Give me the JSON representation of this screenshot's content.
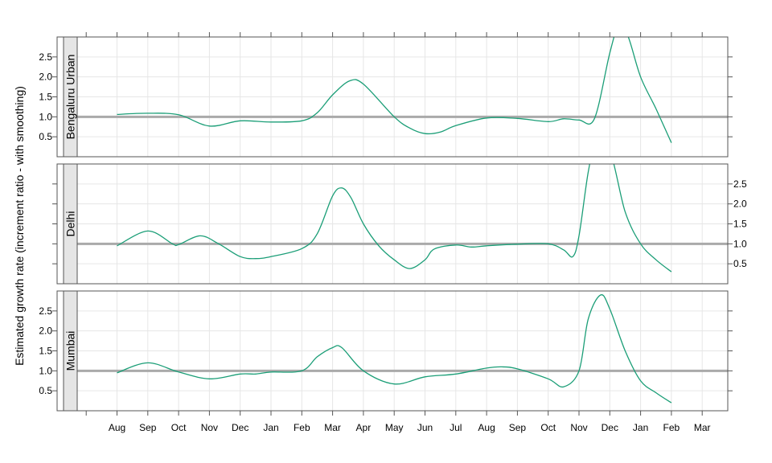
{
  "chart_data": {
    "type": "line",
    "ylabel": "Estimated growth rate (increment ratio - with smoothing)",
    "xlabel": "",
    "x_ticks": [
      "Aug",
      "Sep",
      "Oct",
      "Nov",
      "Dec",
      "Jan",
      "Feb",
      "Mar",
      "Apr",
      "May",
      "Jun",
      "Jul",
      "Aug",
      "Sep",
      "Oct",
      "Nov",
      "Dec",
      "Jan",
      "Feb",
      "Mar"
    ],
    "y_ticks": [
      "0.5",
      "1.0",
      "1.5",
      "2.0",
      "2.5"
    ],
    "ylim": [
      0,
      3.0
    ],
    "reference_line": 1.0,
    "colors": {
      "line": "#1b9e77",
      "reference": "#aaaaaa",
      "strip_bg": "#e5e5e5",
      "grid": "#e6e6e6",
      "frame": "#555555"
    },
    "panels": [
      {
        "name": "Bengaluru Urban",
        "points": [
          [
            0,
            1.06
          ],
          [
            1,
            1.09
          ],
          [
            2,
            1.05
          ],
          [
            3,
            0.77
          ],
          [
            4,
            0.9
          ],
          [
            5,
            0.87
          ],
          [
            6,
            0.9
          ],
          [
            6.5,
            1.1
          ],
          [
            7,
            1.55
          ],
          [
            7.55,
            1.9
          ],
          [
            8,
            1.82
          ],
          [
            9,
            1.0
          ],
          [
            9.5,
            0.72
          ],
          [
            10,
            0.58
          ],
          [
            10.5,
            0.62
          ],
          [
            11,
            0.78
          ],
          [
            12,
            0.97
          ],
          [
            13,
            0.96
          ],
          [
            14,
            0.88
          ],
          [
            14.5,
            0.95
          ],
          [
            15,
            0.92
          ],
          [
            15.5,
            0.95
          ],
          [
            16,
            2.6
          ],
          [
            16.3,
            3.3
          ],
          [
            16.6,
            3.0
          ],
          [
            17,
            2.0
          ],
          [
            17.5,
            1.2
          ],
          [
            18,
            0.35
          ]
        ]
      },
      {
        "name": "Delhi",
        "points": [
          [
            0,
            0.95
          ],
          [
            1,
            1.32
          ],
          [
            1.8,
            1.0
          ],
          [
            2,
            0.98
          ],
          [
            2.7,
            1.2
          ],
          [
            3.3,
            1.0
          ],
          [
            4,
            0.68
          ],
          [
            4.5,
            0.63
          ],
          [
            5,
            0.68
          ],
          [
            6,
            0.88
          ],
          [
            6.5,
            1.25
          ],
          [
            7,
            2.2
          ],
          [
            7.3,
            2.4
          ],
          [
            7.6,
            2.15
          ],
          [
            8,
            1.5
          ],
          [
            8.5,
            0.95
          ],
          [
            9,
            0.6
          ],
          [
            9.5,
            0.38
          ],
          [
            10,
            0.6
          ],
          [
            10.3,
            0.87
          ],
          [
            11,
            0.97
          ],
          [
            11.5,
            0.92
          ],
          [
            12,
            0.95
          ],
          [
            13,
            0.99
          ],
          [
            14,
            1.0
          ],
          [
            14.5,
            0.85
          ],
          [
            14.8,
            0.68
          ],
          [
            15,
            1.2
          ],
          [
            15.3,
            2.8
          ],
          [
            15.5,
            3.3
          ],
          [
            16,
            3.3
          ],
          [
            16.5,
            1.8
          ],
          [
            17,
            1.0
          ],
          [
            17.5,
            0.6
          ],
          [
            18,
            0.3
          ]
        ]
      },
      {
        "name": "Mumbai",
        "points": [
          [
            0,
            0.95
          ],
          [
            1,
            1.2
          ],
          [
            2,
            0.97
          ],
          [
            3,
            0.8
          ],
          [
            4,
            0.92
          ],
          [
            4.5,
            0.92
          ],
          [
            5,
            0.97
          ],
          [
            6,
            1.0
          ],
          [
            6.5,
            1.35
          ],
          [
            7,
            1.58
          ],
          [
            7.3,
            1.58
          ],
          [
            8,
            1.0
          ],
          [
            9,
            0.67
          ],
          [
            10,
            0.85
          ],
          [
            11,
            0.92
          ],
          [
            12,
            1.07
          ],
          [
            12.5,
            1.1
          ],
          [
            13,
            1.05
          ],
          [
            14,
            0.8
          ],
          [
            14.5,
            0.6
          ],
          [
            15,
            1.0
          ],
          [
            15.3,
            2.3
          ],
          [
            15.7,
            2.9
          ],
          [
            16,
            2.55
          ],
          [
            16.5,
            1.5
          ],
          [
            17,
            0.75
          ],
          [
            17.5,
            0.45
          ],
          [
            18,
            0.2
          ]
        ]
      }
    ]
  }
}
